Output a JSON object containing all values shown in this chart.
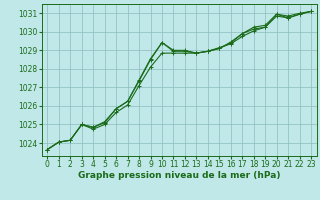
{
  "xlabel": "Graphe pression niveau de la mer (hPa)",
  "background_color": "#c0e8e8",
  "grid_color": "#8bbcbc",
  "line_color": "#1a6b1a",
  "marker": "+",
  "ylim": [
    1023.3,
    1031.5
  ],
  "xlim": [
    -0.5,
    23.5
  ],
  "yticks": [
    1024,
    1025,
    1026,
    1027,
    1028,
    1029,
    1030,
    1031
  ],
  "xticks": [
    0,
    1,
    2,
    3,
    4,
    5,
    6,
    7,
    8,
    9,
    10,
    11,
    12,
    13,
    14,
    15,
    16,
    17,
    18,
    19,
    20,
    21,
    22,
    23
  ],
  "series": [
    [
      1023.65,
      1024.05,
      1024.15,
      1025.0,
      1024.85,
      1025.1,
      1025.85,
      1026.25,
      1027.4,
      1028.55,
      1029.42,
      1028.95,
      1028.95,
      1028.85,
      1028.95,
      1029.1,
      1029.4,
      1029.9,
      1030.15,
      1030.25,
      1030.95,
      1030.75,
      1030.95,
      1031.1
    ],
    [
      1023.65,
      1024.05,
      1024.15,
      1025.0,
      1024.85,
      1025.15,
      1025.85,
      1026.25,
      1027.35,
      1028.5,
      1029.42,
      1029.0,
      1029.0,
      1028.85,
      1028.95,
      1029.15,
      1029.35,
      1029.75,
      1030.05,
      1030.25,
      1030.85,
      1030.75,
      1030.95,
      1031.1
    ],
    [
      1023.65,
      1024.05,
      1024.15,
      1025.0,
      1024.75,
      1025.0,
      1025.65,
      1026.05,
      1027.1,
      1028.1,
      1028.85,
      1028.85,
      1028.85,
      1028.85,
      1028.95,
      1029.1,
      1029.45,
      1029.9,
      1030.25,
      1030.35,
      1030.95,
      1030.85,
      1031.0,
      1031.1
    ]
  ],
  "xlabel_fontsize": 6.5,
  "tick_fontsize": 5.5,
  "linewidth": 0.8
}
